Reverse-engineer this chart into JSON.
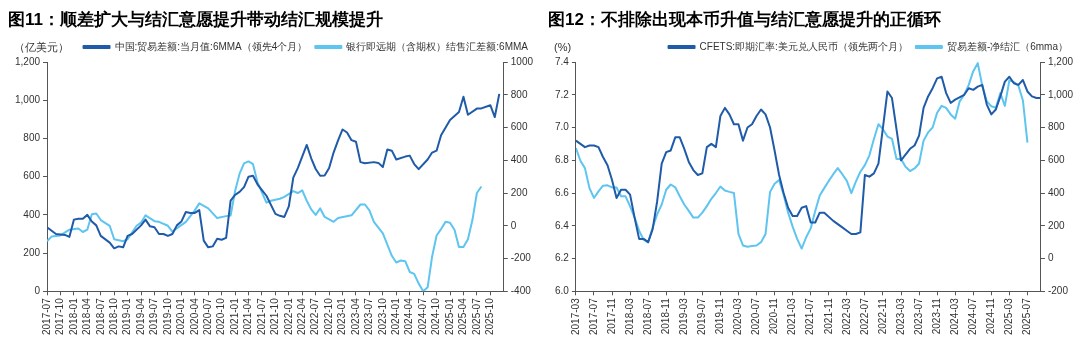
{
  "chart_data": [
    {
      "type": "line",
      "title": "图11：顺差扩大与结汇意愿提升带动结汇规模提升",
      "ylabel": "（亿美元）",
      "legend": "top",
      "xlim": [
        "2017-07",
        "2026-01"
      ],
      "xticks": [
        "2017-07",
        "2017-10",
        "2018-01",
        "2018-04",
        "2018-07",
        "2018-10",
        "2019-01",
        "2019-04",
        "2019-07",
        "2019-10",
        "2020-01",
        "2020-04",
        "2020-07",
        "2020-10",
        "2021-01",
        "2021-04",
        "2021-07",
        "2021-10",
        "2022-01",
        "2022-04",
        "2022-07",
        "2022-10",
        "2023-01",
        "2023-04",
        "2023-07",
        "2023-10",
        "2024-01",
        "2024-04",
        "2024-07",
        "2024-10",
        "2025-01",
        "2025-04",
        "2025-07",
        "2025-10"
      ],
      "ylim": [
        0,
        1200
      ],
      "yticks": [
        0,
        200,
        400,
        600,
        800,
        {
          "value": 1000,
          "label": "1,000"
        },
        {
          "value": 1200,
          "label": "1,200"
        }
      ],
      "y2lim": [
        -400,
        1000
      ],
      "y2ticks": [
        -400,
        -200,
        0,
        200,
        400,
        600,
        800,
        1000
      ],
      "series": [
        {
          "name": "中国:贸易差额:当月值:6MMA（领先4个月）",
          "color": "#1f5ba8",
          "x": [
            "2017-07",
            "2017-09",
            "2017-11",
            "2017-12",
            "2018-01",
            "2018-02",
            "2018-03",
            "2018-04",
            "2018-05",
            "2018-06",
            "2018-07",
            "2018-09",
            "2018-10",
            "2018-11",
            "2018-12",
            "2019-01",
            "2019-02",
            "2019-04",
            "2019-05",
            "2019-06",
            "2019-07",
            "2019-08",
            "2019-09",
            "2019-10",
            "2019-11",
            "2019-12",
            "2020-01",
            "2020-02",
            "2020-03",
            "2020-04",
            "2020-05",
            "2020-06",
            "2020-07",
            "2020-08",
            "2020-09",
            "2020-10",
            "2020-11",
            "2020-12",
            "2021-01",
            "2021-02",
            "2021-03",
            "2021-04",
            "2021-05",
            "2021-06",
            "2021-07",
            "2021-08",
            "2021-10",
            "2021-11",
            "2021-12",
            "2022-01",
            "2022-02",
            "2022-03",
            "2022-05",
            "2022-06",
            "2022-07",
            "2022-08",
            "2022-09",
            "2022-10",
            "2022-11",
            "2022-12",
            "2023-01",
            "2023-02",
            "2023-03",
            "2023-04",
            "2023-05",
            "2023-06",
            "2023-08",
            "2023-09",
            "2023-10",
            "2023-11",
            "2023-12",
            "2024-01",
            "2024-03",
            "2024-04",
            "2024-05",
            "2024-06",
            "2024-08",
            "2024-09",
            "2024-10",
            "2024-11",
            "2025-01",
            "2025-03",
            "2025-04",
            "2025-05",
            "2025-07",
            "2025-08",
            "2025-10",
            "2025-11",
            "2025-12"
          ],
          "values": [
            335,
            300,
            295,
            285,
            375,
            380,
            380,
            400,
            365,
            345,
            290,
            255,
            225,
            235,
            230,
            290,
            300,
            345,
            375,
            340,
            335,
            300,
            300,
            290,
            300,
            345,
            365,
            415,
            410,
            410,
            425,
            265,
            230,
            235,
            275,
            270,
            280,
            475,
            505,
            520,
            545,
            600,
            605,
            560,
            530,
            500,
            405,
            395,
            389,
            444,
            595,
            645,
            766,
            696,
            640,
            605,
            606,
            645,
            726,
            790,
            847,
            831,
            791,
            783,
            676,
            670,
            676,
            672,
            650,
            742,
            736,
            690,
            705,
            710,
            666,
            639,
            690,
            726,
            736,
            817,
            897,
            938,
            1018,
            924,
            956,
            957,
            974,
            912,
            1033
          ]
        },
        {
          "name": "银行即远期（含期权）结售汇差额:6MMA",
          "color": "#5ec4f0",
          "axis": "y2",
          "x": [
            "2017-07",
            "2017-08",
            "2017-10",
            "2017-12",
            "2018-02",
            "2018-03",
            "2018-04",
            "2018-05",
            "2018-06",
            "2018-07",
            "2018-09",
            "2018-10",
            "2018-12",
            "2019-01",
            "2019-03",
            "2019-04",
            "2019-05",
            "2019-07",
            "2019-08",
            "2019-10",
            "2019-11",
            "2020-02",
            "2020-04",
            "2020-05",
            "2020-07",
            "2020-09",
            "2020-11",
            "2020-12",
            "2021-01",
            "2021-02",
            "2021-03",
            "2021-04",
            "2021-05",
            "2021-06",
            "2021-08",
            "2021-09",
            "2021-11",
            "2021-12",
            "2022-02",
            "2022-03",
            "2022-04",
            "2022-05",
            "2022-06",
            "2022-07",
            "2022-08",
            "2022-09",
            "2022-11",
            "2022-12",
            "2023-03",
            "2023-05",
            "2023-06",
            "2023-07",
            "2023-08",
            "2023-10",
            "2023-12",
            "2024-01",
            "2024-02",
            "2024-03",
            "2024-04",
            "2024-05",
            "2024-06",
            "2024-07",
            "2024-08",
            "2024-09",
            "2024-10",
            "2024-11",
            "2024-12",
            "2025-01",
            "2025-02",
            "2025-03",
            "2025-04",
            "2025-05",
            "2025-06",
            "2025-07",
            "2025-08"
          ],
          "values": [
            -94,
            -66,
            -59,
            -24,
            -17,
            -38,
            -24,
            71,
            75,
            35,
            0,
            -82,
            -94,
            -82,
            0,
            19,
            64,
            28,
            24,
            0,
            -35,
            24,
            94,
            137,
            106,
            47,
            59,
            63,
            212,
            318,
            381,
            393,
            376,
            265,
            141,
            153,
            165,
            177,
            212,
            200,
            216,
            153,
            100,
            66,
            106,
            54,
            24,
            47,
            64,
            130,
            130,
            94,
            24,
            -47,
            -183,
            -224,
            -212,
            -216,
            -282,
            -294,
            -353,
            -400,
            -376,
            -188,
            -59,
            -20,
            24,
            19,
            -24,
            -130,
            -130,
            -82,
            35,
            200,
            240
          ]
        }
      ]
    },
    {
      "type": "line",
      "title": "图12：不排除出现本币升值与结汇意愿提升的正循环",
      "ylabel": "(%)",
      "legend": "top",
      "xlim": [
        "2017-03",
        "2025-10"
      ],
      "xticks": [
        "2017-03",
        "2017-07",
        "2017-11",
        "2018-03",
        "2018-07",
        "2018-11",
        "2019-03",
        "2019-07",
        "2019-11",
        "2020-03",
        "2020-07",
        "2020-11",
        "2021-03",
        "2021-07",
        "2021-11",
        "2022-03",
        "2022-07",
        "2022-11",
        "2023-03",
        "2023-07",
        "2023-11",
        "2024-03",
        "2024-07",
        "2024-11",
        "2025-03",
        "2025-07"
      ],
      "ylim": [
        6.0,
        7.4
      ],
      "yticks": [
        {
          "value": 6.0,
          "label": "6.0"
        },
        6.2,
        6.4,
        6.6,
        6.8,
        {
          "value": 7.0,
          "label": "7.0"
        },
        7.2,
        7.4
      ],
      "y2lim": [
        -200,
        1200
      ],
      "y2ticks": [
        -200,
        0,
        200,
        400,
        600,
        800,
        {
          "value": 1000,
          "label": "1,000"
        },
        {
          "value": 1200,
          "label": "1,200"
        }
      ],
      "series": [
        {
          "name": "CFETS:即期汇率:美元兑人民币（领先两个月）",
          "color": "#1f5ba8",
          "x": [
            "2017-03",
            "2017-05",
            "2017-06",
            "2017-07",
            "2017-08",
            "2017-09",
            "2017-10",
            "2017-11",
            "2017-12",
            "2018-01",
            "2018-02",
            "2018-03",
            "2018-04",
            "2018-05",
            "2018-06",
            "2018-07",
            "2018-08",
            "2018-09",
            "2018-10",
            "2018-11",
            "2018-12",
            "2019-01",
            "2019-02",
            "2019-03",
            "2019-04",
            "2019-05",
            "2019-06",
            "2019-07",
            "2019-08",
            "2019-09",
            "2019-10",
            "2019-11",
            "2019-12",
            "2020-01",
            "2020-02",
            "2020-03",
            "2020-04",
            "2020-05",
            "2020-06",
            "2020-07",
            "2020-08",
            "2020-09",
            "2020-10",
            "2020-11",
            "2020-12",
            "2021-01",
            "2021-02",
            "2021-03",
            "2021-04",
            "2021-05",
            "2021-06",
            "2021-07",
            "2021-08",
            "2021-09",
            "2021-10",
            "2021-12",
            "2022-02",
            "2022-03",
            "2022-04",
            "2022-05",
            "2022-06",
            "2022-07",
            "2022-08",
            "2022-09",
            "2022-10",
            "2022-11",
            "2022-12",
            "2023-01",
            "2023-02",
            "2023-03",
            "2023-05",
            "2023-06",
            "2023-07",
            "2023-08",
            "2023-09",
            "2023-10",
            "2023-11",
            "2023-12",
            "2024-01",
            "2024-02",
            "2024-03",
            "2024-05",
            "2024-06",
            "2024-07",
            "2024-08",
            "2024-09",
            "2024-10",
            "2024-11",
            "2024-12",
            "2025-01",
            "2025-02",
            "2025-03",
            "2025-04",
            "2025-05",
            "2025-06",
            "2025-07",
            "2025-08",
            "2025-09",
            "2025-10"
          ],
          "values": [
            6.92,
            6.88,
            6.89,
            6.89,
            6.88,
            6.82,
            6.77,
            6.68,
            6.57,
            6.62,
            6.62,
            6.59,
            6.45,
            6.32,
            6.32,
            6.3,
            6.38,
            6.55,
            6.78,
            6.85,
            6.86,
            6.94,
            6.94,
            6.87,
            6.79,
            6.74,
            6.71,
            6.72,
            6.88,
            6.9,
            6.88,
            7.07,
            7.12,
            7.08,
            7.02,
            7.02,
            6.92,
            7.0,
            7.02,
            7.07,
            7.11,
            7.08,
            7.0,
            6.86,
            6.71,
            6.6,
            6.51,
            6.46,
            6.46,
            6.51,
            6.52,
            6.42,
            6.42,
            6.48,
            6.48,
            6.43,
            6.39,
            6.37,
            6.35,
            6.35,
            6.36,
            6.71,
            6.7,
            6.72,
            6.78,
            7.0,
            7.22,
            7.18,
            6.99,
            6.8,
            6.87,
            6.89,
            6.95,
            7.12,
            7.19,
            7.24,
            7.3,
            7.31,
            7.21,
            7.15,
            7.17,
            7.2,
            7.24,
            7.23,
            7.25,
            7.26,
            7.14,
            7.08,
            7.11,
            7.19,
            7.28,
            7.31,
            7.27,
            7.26,
            7.29,
            7.22,
            7.19,
            7.18,
            7.18
          ]
        },
        {
          "name": "贸易差额-净结汇（6mma）",
          "color": "#5ec4f0",
          "axis": "y2",
          "x": [
            "2017-03",
            "2017-04",
            "2017-05",
            "2017-06",
            "2017-07",
            "2017-08",
            "2017-09",
            "2017-10",
            "2017-11",
            "2017-12",
            "2018-01",
            "2018-02",
            "2018-03",
            "2018-04",
            "2018-05",
            "2018-06",
            "2018-07",
            "2018-08",
            "2018-09",
            "2018-10",
            "2018-11",
            "2018-12",
            "2019-01",
            "2019-02",
            "2019-03",
            "2019-04",
            "2019-05",
            "2019-06",
            "2019-07",
            "2019-08",
            "2019-09",
            "2019-10",
            "2019-11",
            "2019-12",
            "2020-01",
            "2020-02",
            "2020-03",
            "2020-04",
            "2020-05",
            "2020-06",
            "2020-07",
            "2020-08",
            "2020-09",
            "2020-10",
            "2020-11",
            "2020-12",
            "2021-01",
            "2021-02",
            "2021-03",
            "2021-04",
            "2021-05",
            "2021-06",
            "2021-07",
            "2021-08",
            "2021-09",
            "2021-10",
            "2021-11",
            "2021-12",
            "2022-01",
            "2022-02",
            "2022-03",
            "2022-04",
            "2022-05",
            "2022-06",
            "2022-07",
            "2022-08",
            "2022-09",
            "2022-10",
            "2022-11",
            "2022-12",
            "2023-01",
            "2023-02",
            "2023-03",
            "2023-04",
            "2023-05",
            "2023-06",
            "2023-07",
            "2023-08",
            "2023-09",
            "2023-10",
            "2023-11",
            "2023-12",
            "2024-01",
            "2024-02",
            "2024-03",
            "2024-04",
            "2024-05",
            "2024-06",
            "2024-07",
            "2024-08",
            "2024-09",
            "2024-10",
            "2024-11",
            "2024-12",
            "2025-01",
            "2025-02",
            "2025-03",
            "2025-04",
            "2025-05",
            "2025-06",
            "2025-07"
          ],
          "values": [
            675,
            597,
            552,
            430,
            370,
            410,
            445,
            447,
            434,
            434,
            380,
            380,
            318,
            250,
            170,
            115,
            99,
            190,
            270,
            330,
            420,
            452,
            435,
            380,
            330,
            291,
            250,
            250,
            280,
            320,
            365,
            400,
            440,
            415,
            407,
            400,
            150,
            80,
            72,
            76,
            80,
            100,
            150,
            407,
            456,
            480,
            390,
            280,
            195,
            120,
            61,
            130,
            184,
            290,
            385,
            430,
            474,
            515,
            552,
            515,
            474,
            400,
            470,
            530,
            570,
            630,
            730,
            820,
            790,
            745,
            731,
            608,
            608,
            560,
            534,
            550,
            580,
            720,
            770,
            800,
            890,
            932,
            920,
            880,
            854,
            960,
            1000,
            1060,
            1144,
            1193,
            1055,
            960,
            930,
            921,
            1010,
            932,
            1088,
            1077,
            1055,
            965,
            708
          ]
        }
      ]
    }
  ]
}
